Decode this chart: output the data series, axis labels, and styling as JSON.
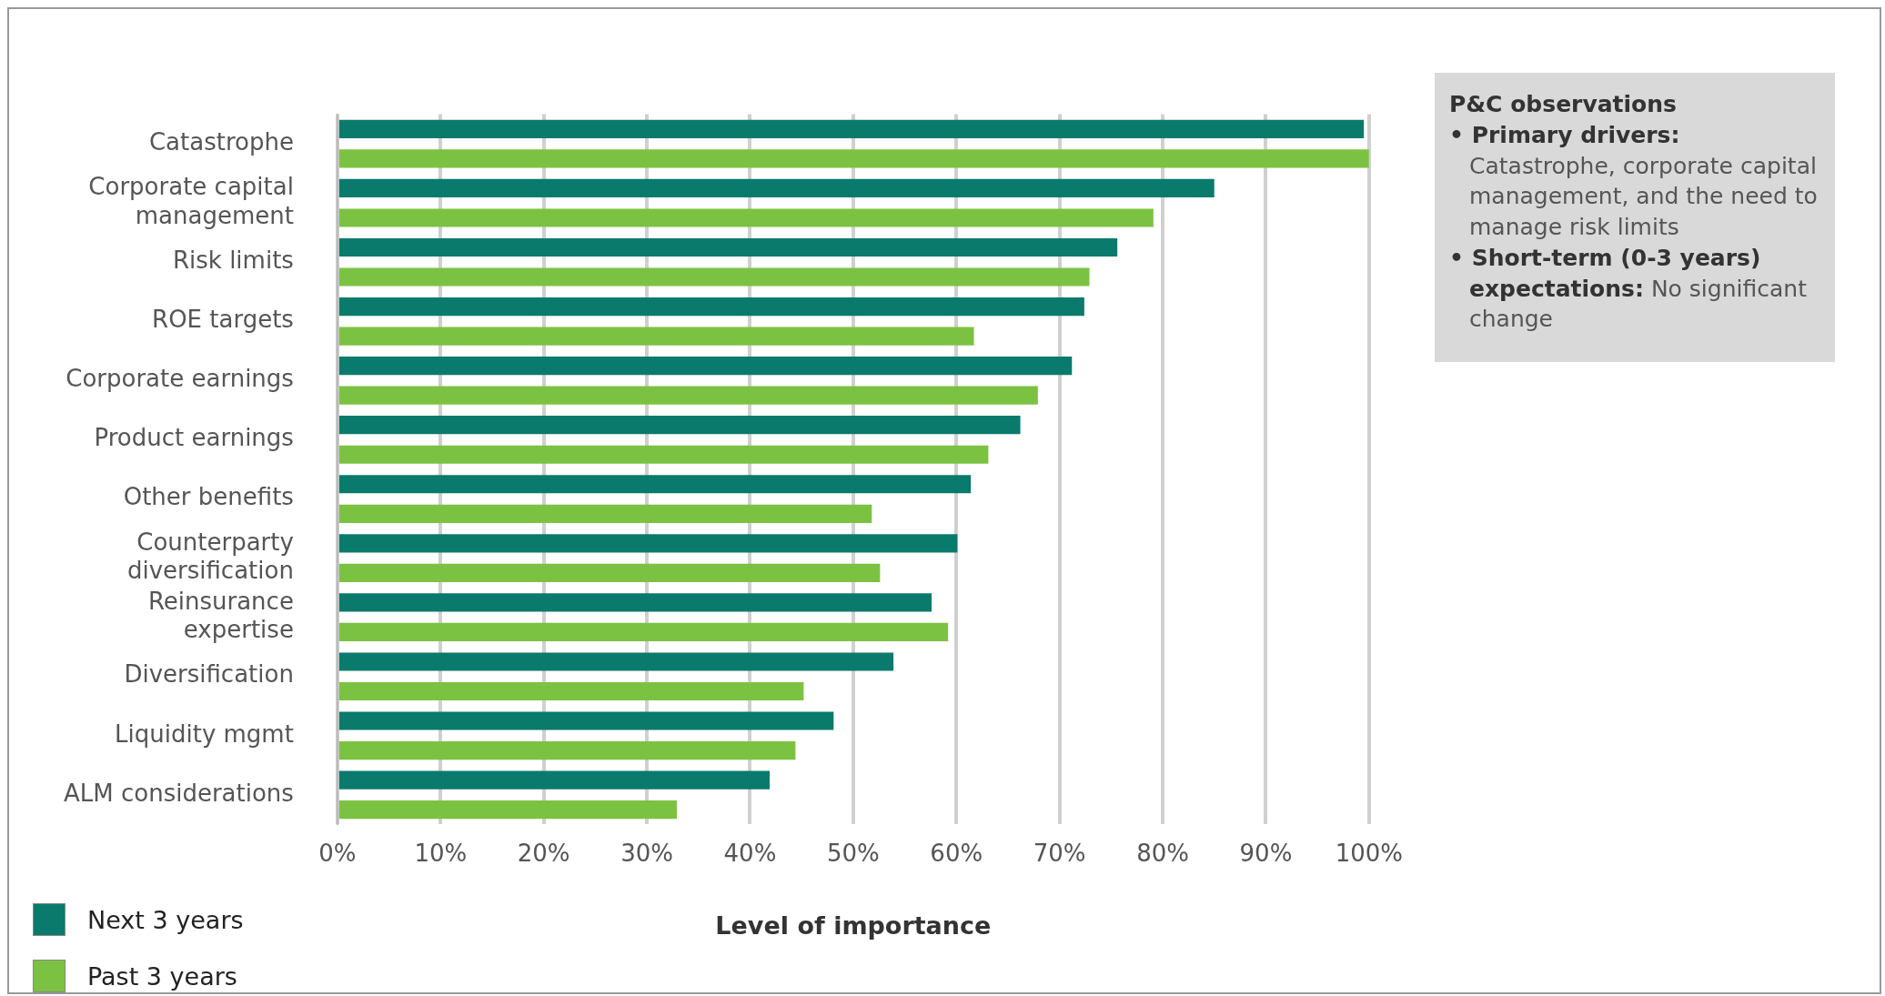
{
  "chart_data": {
    "type": "bar",
    "orientation": "horizontal",
    "xlabel": "Level of importance",
    "categories": [
      "Catastrophe",
      "Corporate capital management",
      "Risk limits",
      "ROE targets",
      "Corporate earnings",
      "Product earnings",
      "Other benefits",
      "Counterparty diversification",
      "Reinsurance expertise",
      "Diversification",
      "Liquidity mgmt",
      "ALM considerations"
    ],
    "series": [
      {
        "name": "Next 3 years",
        "color": "#0a7a6c",
        "values": [
          99.5,
          85,
          75.6,
          72.4,
          71.2,
          66.2,
          61.4,
          60.1,
          57.6,
          53.9,
          48.1,
          41.9
        ]
      },
      {
        "name": "Past 3 years",
        "color": "#7cc242",
        "values": [
          100,
          79.1,
          72.9,
          61.7,
          67.9,
          63.1,
          51.8,
          52.6,
          59.2,
          45.2,
          44.4,
          32.9
        ]
      }
    ],
    "xlim": [
      0,
      100
    ],
    "xticks": [
      {
        "value": 0,
        "label": "0%"
      },
      {
        "value": 10,
        "label": "10%"
      },
      {
        "value": 20,
        "label": "20%"
      },
      {
        "value": 30,
        "label": "30%"
      },
      {
        "value": 40,
        "label": "40%"
      },
      {
        "value": 50,
        "label": "50%"
      },
      {
        "value": 60,
        "label": "60%"
      },
      {
        "value": 70,
        "label": "70%"
      },
      {
        "value": 80,
        "label": "80%"
      },
      {
        "value": 90,
        "label": "90%"
      },
      {
        "value": 100,
        "label": "100%"
      }
    ],
    "grid": "x",
    "legend": "bottom left",
    "annotations": [
      "P&C observations",
      "• Primary drivers: Catastrophe, corporate capital management, and the need to manage risk limits",
      "• Short-term (0-3 years) expectations: No significant change"
    ]
  }
}
